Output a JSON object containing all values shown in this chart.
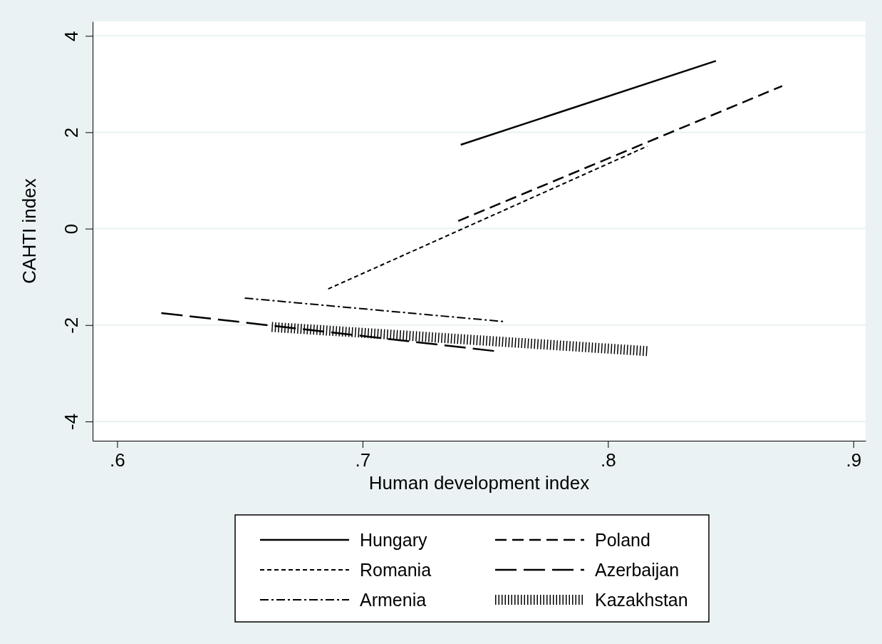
{
  "chart_data": {
    "type": "line",
    "xlabel": "Human development index",
    "ylabel": "CAHTI index",
    "xlim": [
      0.59,
      0.905
    ],
    "ylim": [
      -4.4,
      4.3
    ],
    "xticks": [
      {
        "value": 0.6,
        "label": ".6"
      },
      {
        "value": 0.7,
        "label": ".7"
      },
      {
        "value": 0.8,
        "label": ".8"
      },
      {
        "value": 0.9,
        "label": ".9"
      }
    ],
    "yticks": [
      -4,
      -2,
      0,
      2,
      4
    ],
    "grid": "y",
    "legend": "bottom",
    "marker": "none",
    "series": [
      {
        "name": "Hungary",
        "color": "#000000",
        "line_style": "solid",
        "x": [
          0.74,
          0.844
        ],
        "values": [
          1.74,
          3.48
        ]
      },
      {
        "name": "Poland",
        "color": "#000000",
        "line_style": "dashed",
        "x": [
          0.739,
          0.871
        ],
        "values": [
          0.16,
          2.96
        ]
      },
      {
        "name": "Romania",
        "color": "#000000",
        "line_style": "dotted",
        "x": [
          0.686,
          0.816
        ],
        "values": [
          -1.25,
          1.71
        ]
      },
      {
        "name": "Azerbaijan",
        "color": "#000000",
        "line_style": "longdash",
        "x": [
          0.618,
          0.754
        ],
        "values": [
          -1.75,
          -2.54
        ]
      },
      {
        "name": "Armenia",
        "color": "#000000",
        "line_style": "dashdot",
        "x": [
          0.652,
          0.758
        ],
        "values": [
          -1.44,
          -1.93
        ]
      },
      {
        "name": "Kazakhstan",
        "color": "#000000",
        "line_style": "vticks",
        "x": [
          0.663,
          0.816
        ],
        "values": [
          -2.04,
          -2.54
        ]
      }
    ]
  }
}
